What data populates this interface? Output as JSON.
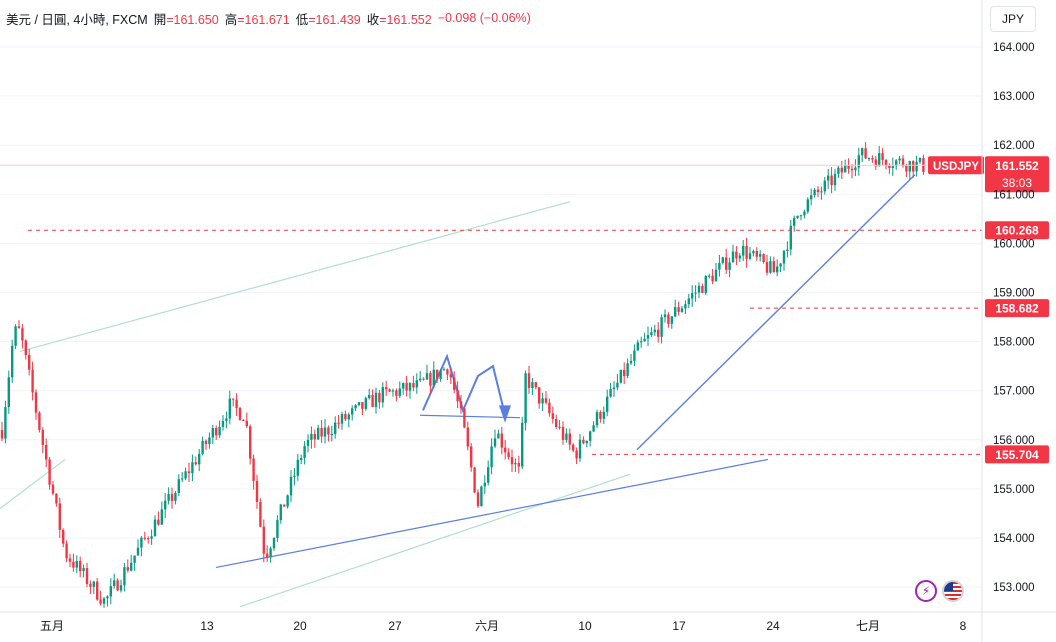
{
  "header": {
    "symbol": "美元 / 日圓, 4小時, FXCM",
    "open_label": "開",
    "open": "=161.650",
    "high_label": "高",
    "high": "=161.671",
    "low_label": "低",
    "low": "=161.439",
    "close_label": "收",
    "close": "=161.552",
    "change": "−0.098 (−0.06%)"
  },
  "currency_button": "JPY",
  "price_labels": {
    "last_ticker": "USDJPY",
    "last_price": "161.552",
    "countdown": "38:03",
    "levels": [
      "160.268",
      "158.682",
      "155.704"
    ]
  },
  "colors": {
    "up": "#089981",
    "down": "#f23645",
    "trendline": "#5b7ee5",
    "channel": "#b2dfcf",
    "level": "#f23645"
  },
  "icons": [
    "lightning-icon",
    "us-flag-icon"
  ],
  "chart_data": {
    "type": "candlestick",
    "symbol": "USDJPY",
    "interval": "4h",
    "y_axis": {
      "ticks": [
        153.0,
        154.0,
        155.0,
        156.0,
        157.0,
        158.0,
        159.0,
        160.0,
        161.0,
        162.0,
        163.0,
        164.0
      ],
      "range": [
        152.6,
        164.4
      ]
    },
    "x_axis": {
      "ticks": [
        "五月",
        "13",
        "20",
        "27",
        "六月",
        "10",
        "17",
        "24",
        "七月",
        "8"
      ]
    },
    "horizontal_levels": [
      160.268,
      158.682,
      155.704
    ],
    "last_price": 161.552,
    "anchors": [
      [
        "五月",
        158.2
      ],
      [
        "五月",
        153.7
      ],
      [
        "五月",
        152.7
      ],
      [
        "13",
        156.7
      ],
      [
        "13",
        156.5
      ],
      [
        "20",
        153.6
      ],
      [
        "20",
        155.9
      ],
      [
        "27",
        156.9
      ],
      [
        "27",
        157.1
      ],
      [
        "六月",
        157.5
      ],
      [
        "六月",
        156.4
      ],
      [
        "六月",
        154.7
      ],
      [
        "六月",
        156.2
      ],
      [
        "10",
        155.3
      ],
      [
        "10",
        157.3
      ],
      [
        "17",
        155.7
      ],
      [
        "17",
        157.9
      ],
      [
        "24",
        159.9
      ],
      [
        "24",
        159.4
      ],
      [
        "七月",
        160.7
      ],
      [
        "七月",
        161.8
      ],
      [
        "8",
        161.55
      ]
    ]
  }
}
